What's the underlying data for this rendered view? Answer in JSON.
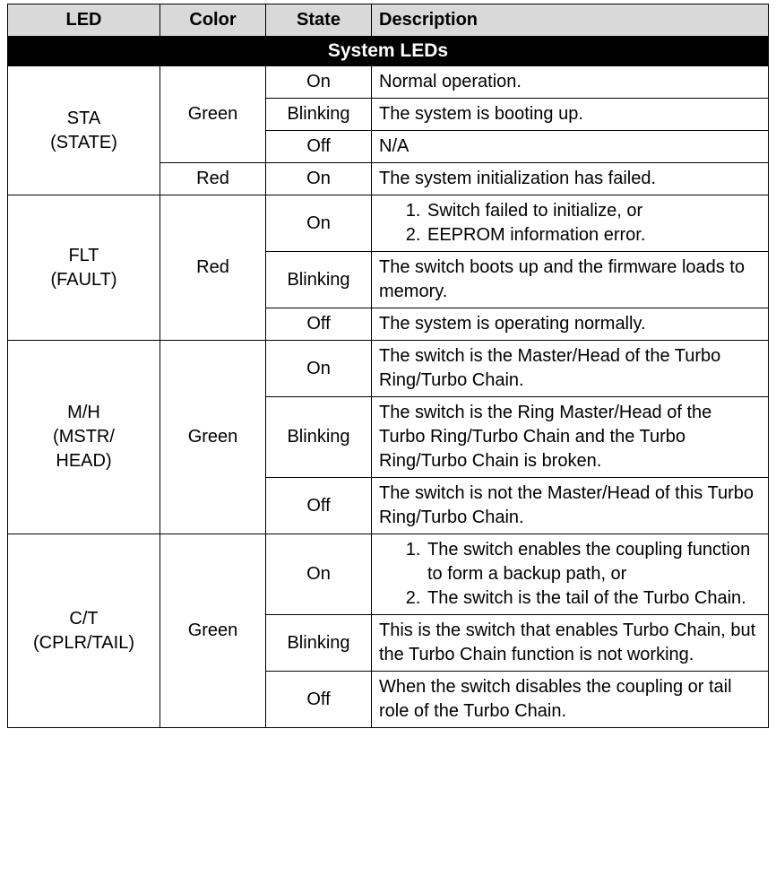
{
  "columns": {
    "led": "LED",
    "color": "Color",
    "state": "State",
    "description": "Description"
  },
  "section_title": "System LEDs",
  "leds": {
    "sta": {
      "name_line1": "STA",
      "name_line2": "(STATE)",
      "green": {
        "label": "Green",
        "on": {
          "state": "On",
          "desc": "Normal operation."
        },
        "blinking": {
          "state": "Blinking",
          "desc": "The system is booting up."
        },
        "off": {
          "state": "Off",
          "desc": "N/A"
        }
      },
      "red": {
        "label": "Red",
        "on": {
          "state": "On",
          "desc": "The system initialization has failed."
        }
      }
    },
    "flt": {
      "name_line1": "FLT",
      "name_line2": "(FAULT)",
      "red": {
        "label": "Red",
        "on": {
          "state": "On",
          "item1": "Switch failed to initialize, or",
          "item2": "EEPROM information error."
        },
        "blinking": {
          "state": "Blinking",
          "desc": "The switch boots up and the firmware loads to memory."
        },
        "off": {
          "state": "Off",
          "desc": "The system is operating normally."
        }
      }
    },
    "mh": {
      "name_line1": "M/H",
      "name_line2": "(MSTR/",
      "name_line3": "HEAD)",
      "green": {
        "label": "Green",
        "on": {
          "state": "On",
          "desc": "The switch is the Master/Head of the Turbo Ring/Turbo Chain."
        },
        "blinking": {
          "state": "Blinking",
          "desc": "The switch is the Ring Master/Head of the Turbo Ring/Turbo Chain and the Turbo Ring/Turbo Chain is broken."
        },
        "off": {
          "state": "Off",
          "desc": "The switch is not the Master/Head of this Turbo Ring/Turbo Chain."
        }
      }
    },
    "ct": {
      "name_line1": "C/T",
      "name_line2": "(CPLR/TAIL)",
      "green": {
        "label": "Green",
        "on": {
          "state": "On",
          "item1": "The switch enables the coupling function to form a backup path, or",
          "item2": "The switch is the tail of the Turbo Chain."
        },
        "blinking": {
          "state": "Blinking",
          "desc": "This is the switch that enables Turbo Chain, but the Turbo Chain function is not working."
        },
        "off": {
          "state": "Off",
          "desc": "When the switch disables the coupling or tail role of the Turbo Chain."
        }
      }
    }
  }
}
